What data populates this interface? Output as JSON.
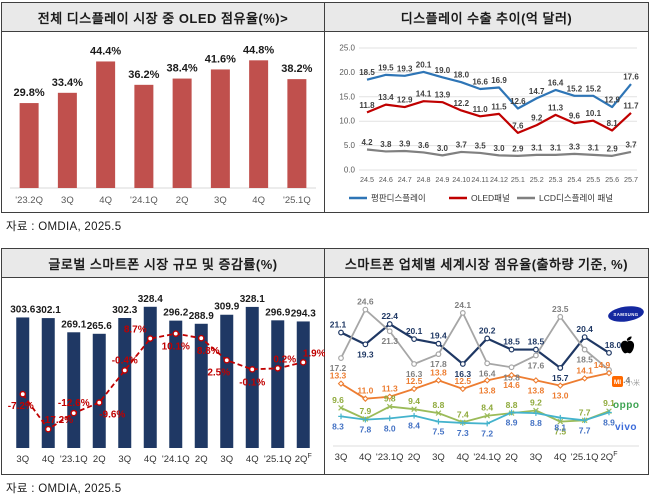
{
  "sources": {
    "top": "자료 : OMDIA, 2025.5",
    "bottom": "자료 : OMDIA, 2025.5"
  },
  "chart_data": [
    {
      "id": "oled_share",
      "type": "bar",
      "title": "전체 디스플레이 시장 중 OLED 점유율(%)>",
      "categories": [
        "'23.2Q",
        "3Q",
        "4Q",
        "'24.1Q",
        "2Q",
        "3Q",
        "4Q",
        "'25.1Q"
      ],
      "values": [
        29.8,
        33.4,
        44.4,
        36.2,
        38.4,
        41.6,
        44.8,
        38.2
      ],
      "value_labels": [
        "29.8%",
        "33.4%",
        "44.4%",
        "36.2%",
        "38.4%",
        "41.6%",
        "44.8%",
        "38.2%"
      ],
      "bar_color": "#C0504D",
      "ylim": [
        0,
        50
      ],
      "grid": false
    },
    {
      "id": "display_export",
      "type": "line",
      "title": "디스플레이 수출 추이(억 달러)",
      "x": [
        "24.5",
        "24.6",
        "24.7",
        "24.8",
        "24.9",
        "24.10",
        "24.11",
        "24.12",
        "25.1",
        "25.2",
        "25.3",
        "25.4",
        "25.5",
        "25.6",
        "25.7"
      ],
      "yticks": [
        "25.0",
        "20.0",
        "15.0",
        "10.0",
        "5.0",
        "0.0"
      ],
      "ylim": [
        0,
        25
      ],
      "grid": true,
      "legend_position": "bottom",
      "series": [
        {
          "name": "평판디스플레이",
          "color": "#2E75B6",
          "values": [
            18.5,
            19.5,
            19.3,
            20.1,
            19.0,
            18.0,
            16.6,
            16.9,
            12.6,
            14.7,
            16.4,
            15.2,
            15.2,
            12.9,
            17.6
          ]
        },
        {
          "name": "OLED패널",
          "color": "#C00000",
          "values": [
            11.8,
            13.4,
            12.9,
            14.1,
            13.9,
            12.2,
            11.0,
            11.5,
            7.6,
            9.2,
            11.3,
            9.6,
            10.1,
            8.1,
            11.7
          ]
        },
        {
          "name": "LCD디스플레이 패널",
          "color": "#808080",
          "values": [
            4.2,
            3.8,
            3.9,
            3.6,
            3.0,
            3.7,
            3.5,
            3.0,
            2.9,
            3.1,
            3.1,
            3.3,
            3.1,
            2.9,
            3.7
          ]
        }
      ]
    },
    {
      "id": "smartphone_market",
      "type": "bar+line",
      "title": "글로벌 스마트폰 시장 규모 및 증감률(%)",
      "categories": [
        "3Q",
        "4Q",
        "'23.1Q",
        "2Q",
        "3Q",
        "4Q",
        "'24.1Q",
        "2Q",
        "3Q",
        "4Q",
        "'25.1Q",
        "2Q"
      ],
      "last_category_superscript": "F",
      "bars": {
        "name": "시장 규모",
        "color": "#1F3864",
        "values": [
          303.6,
          302.1,
          269.1,
          265.6,
          302.3,
          328.4,
          296.2,
          288.9,
          309.9,
          328.1,
          296.9,
          294.3
        ]
      },
      "line": {
        "name": "증감률",
        "color": "#C00000",
        "values": [
          -7.2,
          -17.2,
          -12.6,
          -9.6,
          -0.4,
          8.7,
          10.1,
          8.8,
          2.5,
          -0.1,
          0.2,
          1.9
        ],
        "labels": [
          "-7.2%",
          "-17.2%",
          "-12.6%",
          "-9.6%",
          "-0.4%",
          "8.7%",
          "10.1%",
          "8.8%",
          "2.5%",
          "-0.1%",
          "0.2%",
          "1.9%"
        ]
      }
    },
    {
      "id": "vendor_share",
      "type": "line",
      "title": "스마트폰 업체별 세계시장 점유율(출하량 기준, %)",
      "categories": [
        "3Q",
        "4Q",
        "'23.1Q",
        "2Q",
        "3Q",
        "4Q",
        "'24.1Q",
        "2Q",
        "3Q",
        "4Q",
        "'25.1Q",
        "2Q"
      ],
      "last_category_superscript": "F",
      "series": [
        {
          "name": "Samsung",
          "logo": "samsung-logo",
          "color": "#1F3864",
          "label_color": "#1F3864",
          "values": [
            21.1,
            19.3,
            22.4,
            20.1,
            19.4,
            16.3,
            20.2,
            18.5,
            18.5,
            15.7,
            20.4,
            18.0
          ]
        },
        {
          "name": "Apple",
          "logo": "apple-logo",
          "color": "#A6A6A6",
          "label_color": "#808080",
          "values": [
            17.2,
            24.6,
            21.3,
            16.3,
            17.8,
            24.1,
            16.4,
            15.8,
            17.6,
            23.5,
            18.5,
            15.4
          ]
        },
        {
          "name": "Xiaomi",
          "logo": "xiaomi-logo",
          "color": "#ED7D31",
          "label_color": "#ED7D31",
          "values": [
            13.3,
            11.0,
            11.3,
            12.5,
            13.8,
            12.5,
            13.8,
            14.6,
            13.8,
            13.0,
            14.1,
            14.9
          ]
        },
        {
          "name": "OPPO",
          "logo": "oppo-logo",
          "color": "#9BBB59",
          "label_color": "#8FAA3C",
          "values": [
            9.6,
            7.9,
            9.8,
            9.4,
            8.8,
            7.4,
            8.4,
            8.8,
            9.2,
            7.5,
            7.7,
            9.1
          ]
        },
        {
          "name": "vivo",
          "logo": "vivo-logo",
          "color": "#44B3CC",
          "label_color": "#4472C4",
          "values": [
            8.3,
            7.8,
            8.0,
            8.4,
            7.5,
            7.3,
            7.2,
            8.9,
            8.8,
            8.1,
            7.7,
            8.9
          ]
        }
      ]
    }
  ],
  "logos": {
    "samsung": {
      "text": "SAMSUNG",
      "color": "#1428A0"
    },
    "apple": {
      "color": "#000000"
    },
    "xiaomi": {
      "text": "MI",
      "cn": "小米",
      "color": "#FF6900",
      "cn_color": "#9e9e9e"
    },
    "oppo": {
      "text": "oppo",
      "color": "#3DA352"
    },
    "vivo": {
      "text": "vivo",
      "color": "#3B6BDA"
    }
  }
}
